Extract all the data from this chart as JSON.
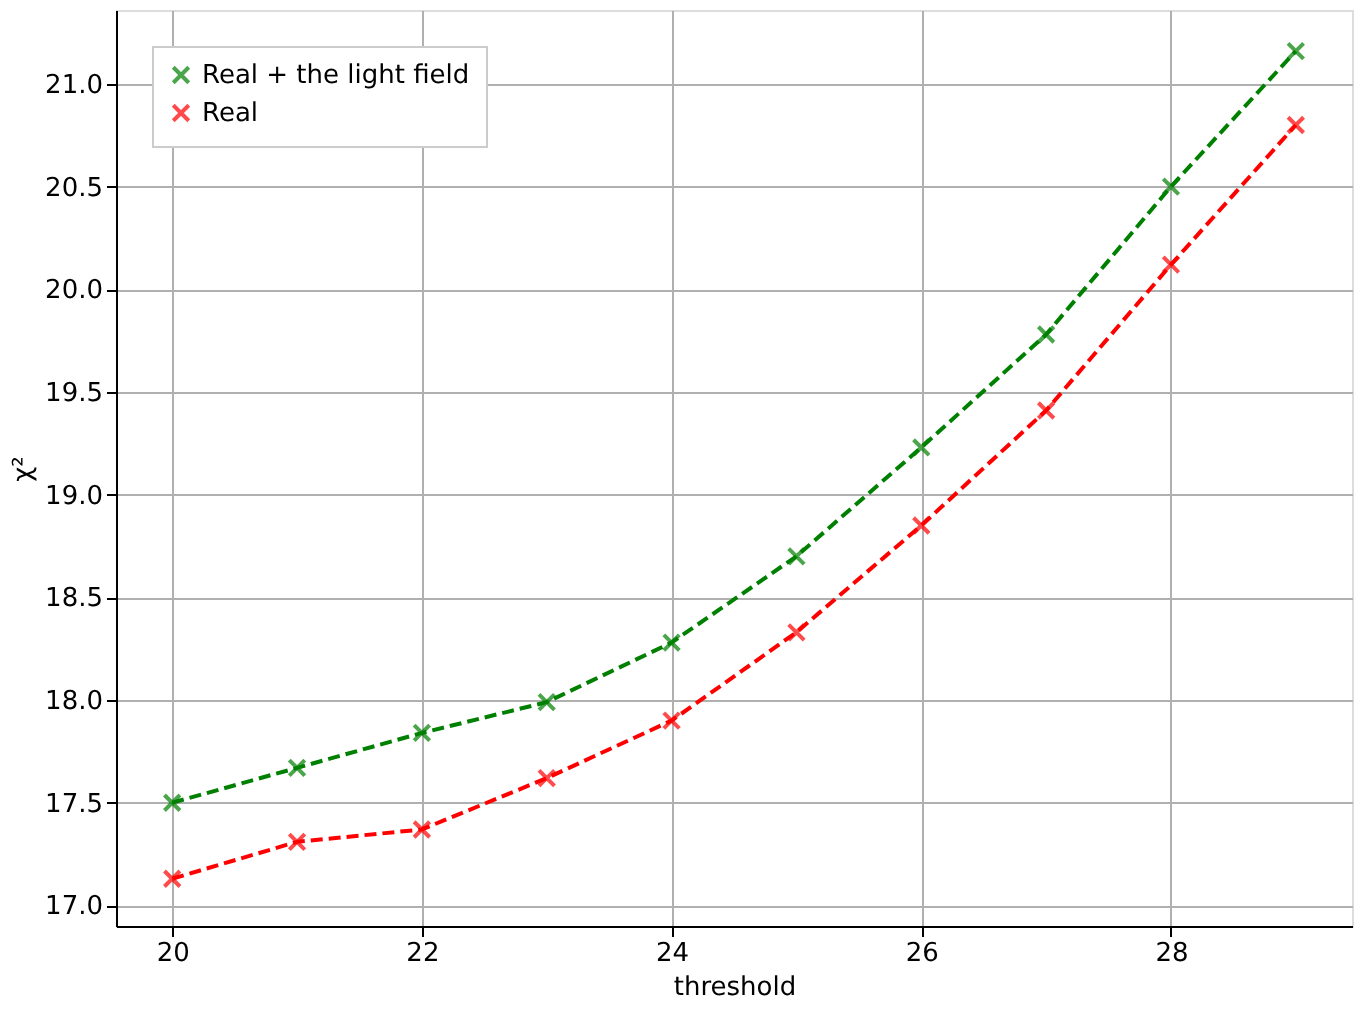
{
  "chart_data": {
    "type": "line",
    "xlabel": "threshold",
    "ylabel": "χ²",
    "x": [
      20,
      21,
      22,
      23,
      24,
      25,
      26,
      27,
      28,
      29
    ],
    "series": [
      {
        "name": "Real + the light field",
        "color": "#008000",
        "values": [
          17.5,
          17.67,
          17.84,
          17.99,
          18.28,
          18.7,
          19.23,
          19.78,
          20.5,
          21.16
        ]
      },
      {
        "name": "Real",
        "color": "#ff0000",
        "values": [
          17.13,
          17.31,
          17.37,
          17.62,
          17.9,
          18.33,
          18.85,
          19.41,
          20.12,
          20.8
        ]
      }
    ],
    "xlim": [
      19.55,
      29.45
    ],
    "xticks": [
      20,
      22,
      24,
      26,
      28
    ],
    "ylim": [
      16.9,
      21.36
    ],
    "yticks": [
      {
        "value": 17,
        "label": "17.0"
      },
      {
        "value": 17.5,
        "label": "17.5"
      },
      {
        "value": 18,
        "label": "18.0"
      },
      {
        "value": 18.5,
        "label": "18.5"
      },
      {
        "value": 19,
        "label": "19.0"
      },
      {
        "value": 19.5,
        "label": "19.5"
      },
      {
        "value": 20,
        "label": "20.0"
      },
      {
        "value": 20.5,
        "label": "20.5"
      },
      {
        "value": 21,
        "label": "21.0"
      }
    ],
    "grid": true,
    "legend": "top left",
    "marker": "cross",
    "line_style": "dashed"
  }
}
